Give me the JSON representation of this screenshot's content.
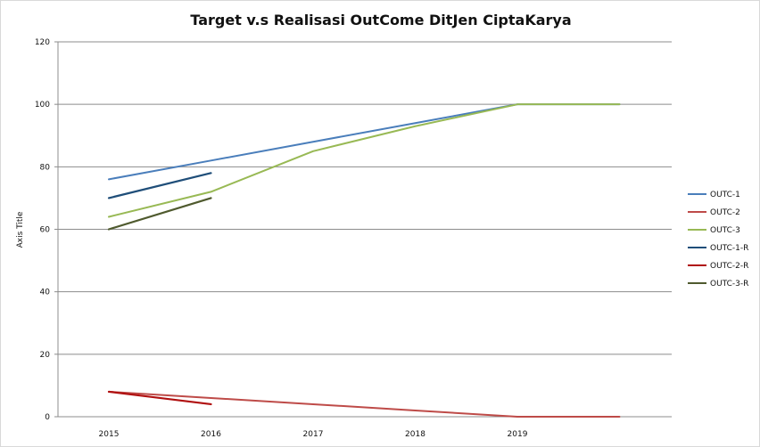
{
  "chart_data": {
    "type": "line",
    "title": "Target  v.s Realisasi OutCome DitJen CiptaKarya",
    "xlabel": "",
    "ylabel": "Axis Title",
    "categories": [
      "2015",
      "2016",
      "2017",
      "2018",
      "2019",
      ""
    ],
    "ylim": [
      0,
      120
    ],
    "yticks": [
      0,
      20,
      40,
      60,
      80,
      100,
      120
    ],
    "grid": true,
    "legend_position": "right",
    "series": [
      {
        "name": "OUTC-1",
        "color": "#4a7ebb",
        "values": [
          76,
          82,
          88,
          94,
          100,
          100
        ]
      },
      {
        "name": "OUTC-2",
        "color": "#be4b48",
        "values": [
          8,
          6,
          4,
          2,
          0,
          0
        ]
      },
      {
        "name": "OUTC-3",
        "color": "#98b954",
        "values": [
          64,
          72,
          85,
          93,
          100,
          100
        ]
      },
      {
        "name": "OUTC-1-R",
        "color": "#1f4e79",
        "values": [
          70,
          78,
          null,
          null,
          null,
          null
        ]
      },
      {
        "name": "OUTC-2-R",
        "color": "#b01010",
        "values": [
          8,
          4,
          null,
          null,
          null,
          null
        ]
      },
      {
        "name": "OUTC-3-R",
        "color": "#4f5a2e",
        "values": [
          60,
          70,
          null,
          null,
          null,
          null
        ]
      }
    ]
  }
}
